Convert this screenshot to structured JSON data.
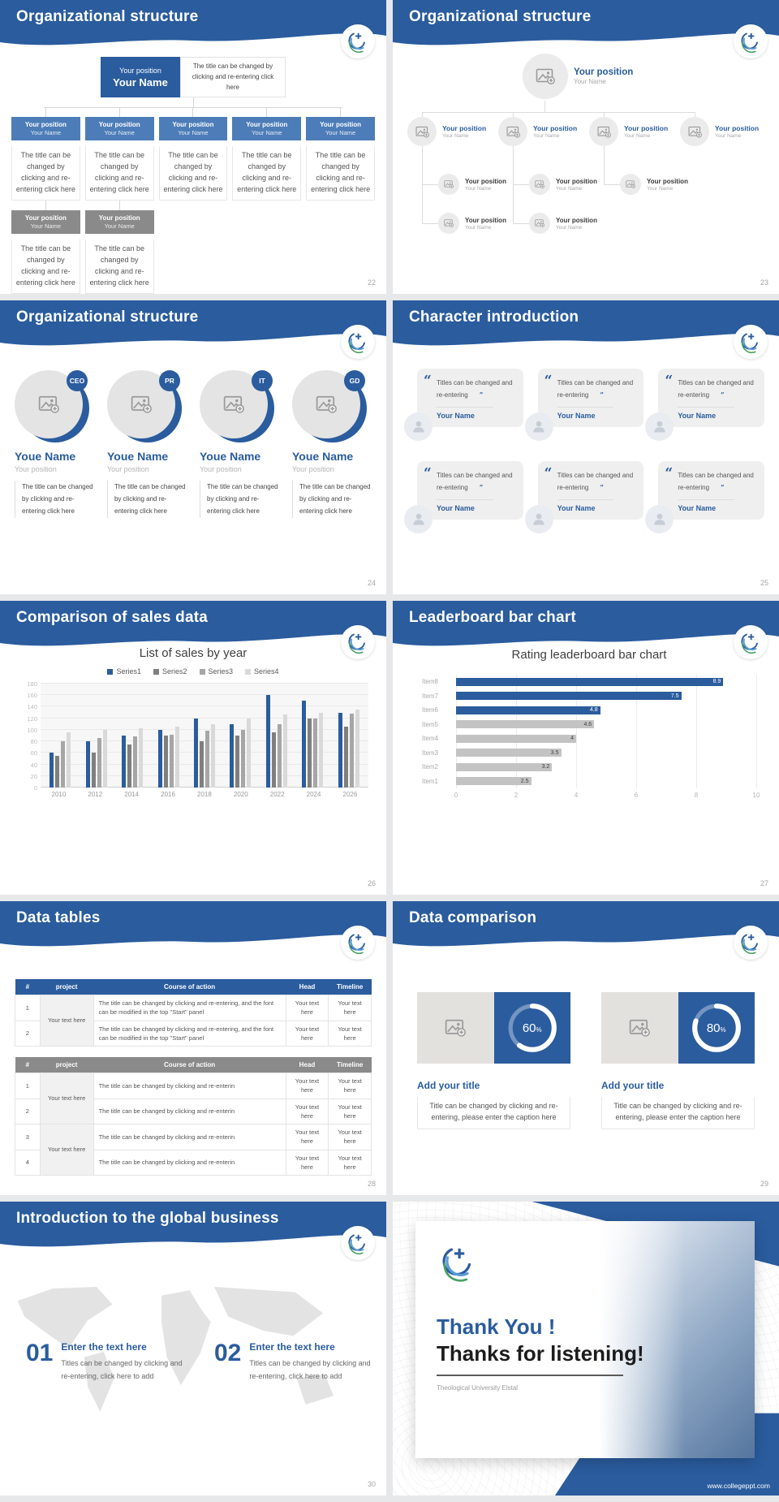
{
  "ui": {
    "accent": "#2a5c9e",
    "accent_light": "#4d7db8",
    "gray_box": "#8a8a8a",
    "logo_colors": {
      "dark_blue": "#2a5c9e",
      "light_blue": "#5b9bd5",
      "green": "#47a066"
    }
  },
  "slides": {
    "s22": {
      "title": "Organizational structure",
      "page": "22",
      "node_title": "Your position",
      "node_name": "Your Name",
      "caption": "The title can be changed by clicking and re-entering click here"
    },
    "s23": {
      "title": "Organizational structure",
      "page": "23",
      "node_title": "Your position",
      "node_name": "Your Name"
    },
    "s24": {
      "title": "Organizational structure",
      "page": "24",
      "badges": [
        "CEO",
        "PR",
        "IT",
        "GD"
      ],
      "name": "Youe Name",
      "position": "Your position",
      "caption": "The title can be changed by clicking and re-entering click here"
    },
    "s25": {
      "title": "Character introduction",
      "page": "25",
      "quote": "Titles can be changed and re-entering",
      "name": "Your Name"
    },
    "s26": {
      "title": "Comparison of sales data",
      "page": "26"
    },
    "s27": {
      "title": "Leaderboard bar chart",
      "page": "27"
    },
    "s28": {
      "title": "Data tables",
      "page": "28",
      "table1": {
        "headers": [
          "#",
          "project",
          "Course of action",
          "Head",
          "Timeline"
        ],
        "rows": [
          "1",
          "2"
        ],
        "project": "Your text here",
        "action": "The title can be changed by clicking and re-entering, and the font can be modified in the top \"Start\" panel",
        "cell": "Your text here"
      },
      "table2": {
        "headers": [
          "#",
          "project",
          "Course of action",
          "Head",
          "Timeline"
        ],
        "rows": [
          "1",
          "2",
          "3",
          "4"
        ],
        "project": "Your text here",
        "action": "The title can be changed by clicking and re-enterin",
        "cell": "Your text here"
      }
    },
    "s29": {
      "title": "Data comparison",
      "page": "29",
      "cards": [
        {
          "title": "Add your title",
          "caption": "Title can be changed by clicking and re-entering, please enter the caption here"
        },
        {
          "title": "Add your title",
          "caption": "Title can be changed by clicking and re-entering, please enter the caption here"
        }
      ]
    },
    "s30": {
      "title": "Introduction to the global business",
      "page": "30",
      "items": [
        {
          "num": "01",
          "title": "Enter the text here",
          "caption": "Titles can be changed by clicking and re-entering, click here to add"
        },
        {
          "num": "02",
          "title": "Enter the text here",
          "caption": "Titles can be changed by clicking and re-entering, click here to add"
        }
      ]
    },
    "s31": {
      "line1": "Thank You !",
      "line2": "Thanks for listening!",
      "subtitle": "Theological University Elstal",
      "url": "www.collegeppt.com"
    }
  },
  "chart_data": [
    {
      "type": "bar",
      "title": "List of sales by year",
      "categories": [
        "2010",
        "2012",
        "2014",
        "2016",
        "2018",
        "2020",
        "2022",
        "2024",
        "2026"
      ],
      "series": [
        {
          "name": "Series1",
          "color": "#2a5c9e",
          "values": [
            60,
            80,
            90,
            100,
            120,
            110,
            160,
            150,
            130
          ]
        },
        {
          "name": "Series2",
          "color": "#7f7f7f",
          "values": [
            55,
            60,
            75,
            90,
            80,
            90,
            95,
            120,
            105
          ]
        },
        {
          "name": "Series3",
          "color": "#a6a6a6",
          "values": [
            80,
            86,
            88,
            92,
            98,
            100,
            110,
            120,
            128
          ]
        },
        {
          "name": "Series4",
          "color": "#d9d9d9",
          "values": [
            95,
            100,
            102,
            105,
            110,
            120,
            126,
            130,
            135
          ]
        }
      ],
      "xlabel": "",
      "ylabel": "",
      "ylim": [
        0,
        180
      ],
      "ytick_step": 20,
      "grid": true,
      "legend_position": "top"
    },
    {
      "type": "bar-horizontal",
      "title": "Rating leaderboard bar chart",
      "categories": [
        "Item8",
        "Item7",
        "Item6",
        "Item5",
        "Item4",
        "Item3",
        "Item2",
        "Item1"
      ],
      "values": [
        8.9,
        7.5,
        4.8,
        4.6,
        4,
        3.5,
        3.2,
        2.5
      ],
      "colors": [
        "#2a5c9e",
        "#2a5c9e",
        "#2a5c9e",
        "#c3c3c3",
        "#c3c3c3",
        "#c3c3c3",
        "#c3c3c3",
        "#c3c3c3"
      ],
      "xlim": [
        0,
        10
      ],
      "xticks": [
        0,
        2,
        4,
        6,
        8,
        10
      ],
      "grid": true
    },
    {
      "type": "donut",
      "values": [
        {
          "label": "Add your title",
          "percent": 60
        },
        {
          "label": "Add your title",
          "percent": 80
        }
      ]
    }
  ]
}
